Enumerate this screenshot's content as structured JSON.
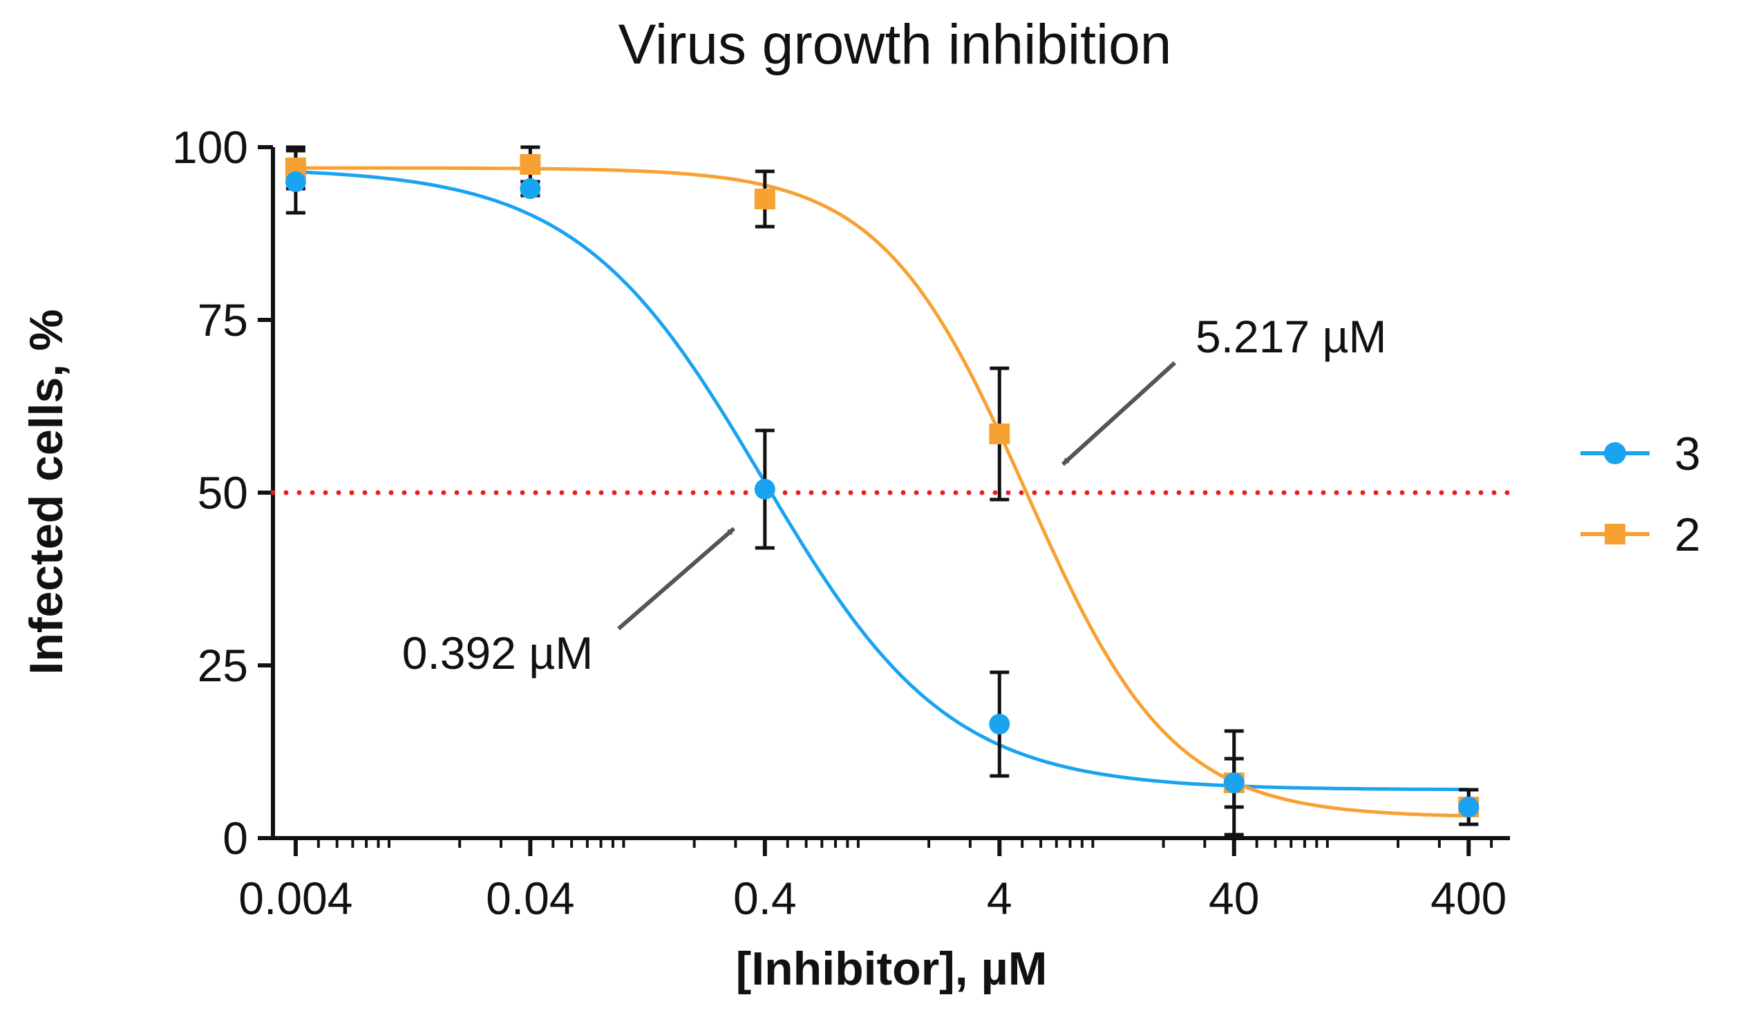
{
  "chart_data": {
    "type": "scatter",
    "title": "Virus growth inhibition",
    "xlabel": "[Inhibitor], µM",
    "ylabel": "Infected cells, %",
    "x_scale": "log10",
    "xlim": [
      0.0032,
      600
    ],
    "ylim": [
      0,
      100
    ],
    "x_ticks": [
      0.004,
      0.04,
      0.4,
      4,
      40,
      400
    ],
    "x_tick_labels": [
      "0.004",
      "0.04",
      "0.4",
      "4",
      "40",
      "400"
    ],
    "y_ticks": [
      0,
      25,
      50,
      75,
      100
    ],
    "y_tick_labels": [
      "0",
      "25",
      "50",
      "75",
      "100"
    ],
    "grid": false,
    "legend_position": "right",
    "reference_line": {
      "y": 50,
      "color": "#ee1c1c",
      "style": "dotted"
    },
    "series": [
      {
        "name": "3",
        "color": "#1aa3f0",
        "marker": "circle",
        "x": [
          0.004,
          0.04,
          0.4,
          4,
          40,
          400
        ],
        "y": [
          95,
          94,
          50.5,
          16.5,
          8,
          4.5
        ],
        "error": [
          4.5,
          1,
          8.5,
          7.5,
          7.5,
          2.5
        ],
        "fit": {
          "top": 97,
          "bottom": 7,
          "ic50": 0.392,
          "hill": 1.1
        }
      },
      {
        "name": "2",
        "color": "#f7a133",
        "marker": "square",
        "x": [
          0.004,
          0.04,
          0.4,
          4,
          40,
          400
        ],
        "y": [
          97,
          97.5,
          92.5,
          58.5,
          8,
          4.5
        ],
        "error": [
          3,
          2.5,
          4,
          9.5,
          3.5,
          2.5
        ],
        "fit": {
          "top": 97,
          "bottom": 3,
          "ic50": 5.217,
          "hill": 1.4
        }
      }
    ],
    "annotations": [
      {
        "text": "0.392 µM",
        "points_to": {
          "x": 0.392,
          "y": 50
        }
      },
      {
        "text": "5.217 µM",
        "points_to": {
          "x": 5.217,
          "y": 50
        }
      }
    ]
  }
}
